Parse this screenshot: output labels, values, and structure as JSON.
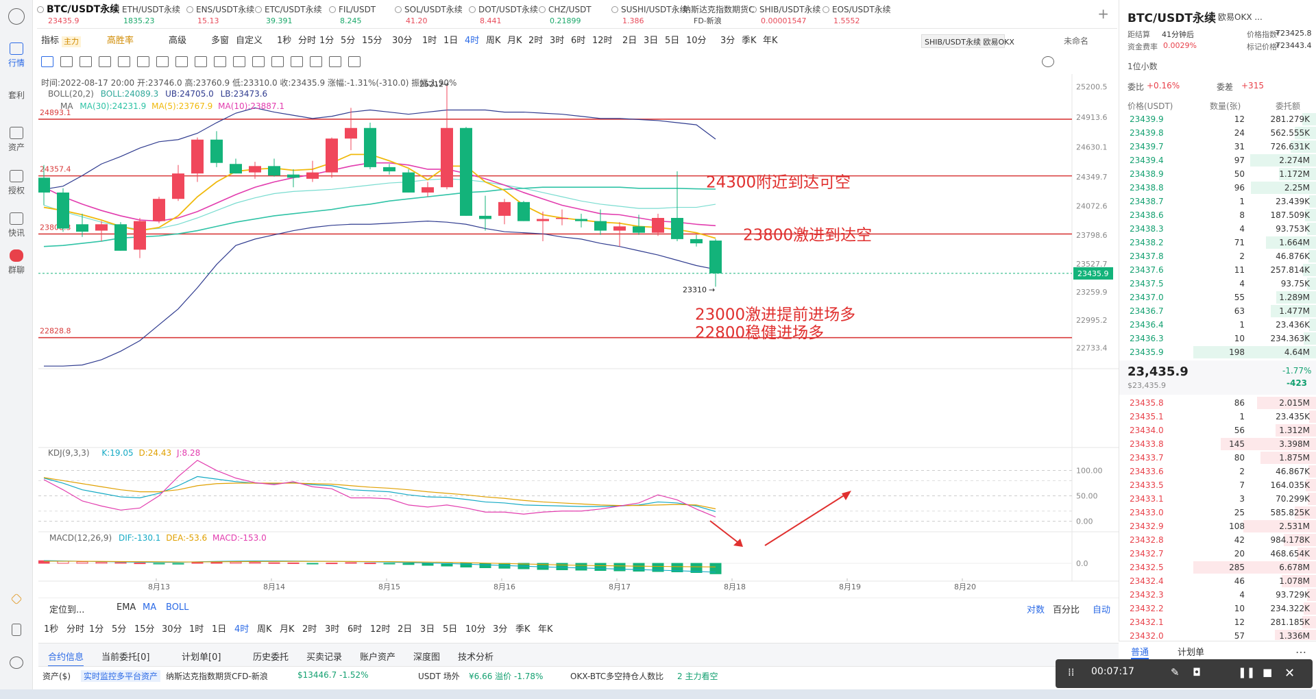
{
  "tabs": [
    {
      "name": "BTC/USDT永续",
      "price": "23435.9",
      "dir": "down"
    },
    {
      "name": "ETH/USDT永续",
      "price": "1835.23",
      "dir": "up"
    },
    {
      "name": "ENS/USDT永续",
      "price": "15.13",
      "dir": "down"
    },
    {
      "name": "ETC/USDT永续",
      "price": "39.391",
      "dir": "up"
    },
    {
      "name": "FIL/USDT",
      "price": "8.245",
      "dir": "up"
    },
    {
      "name": "SOL/USDT永续",
      "price": "41.20",
      "dir": "down"
    },
    {
      "name": "DOT/USDT永续",
      "price": "8.441",
      "dir": "down"
    },
    {
      "name": "CHZ/USDT",
      "price": "0.21899",
      "dir": "up"
    },
    {
      "name": "SUSHI/USDT永续",
      "price": "1.386",
      "dir": "down"
    },
    {
      "name": "纳斯达克指数期货C",
      "price": "FD-新浪",
      "dir": "plain"
    },
    {
      "name": "SHIB/USDT永续",
      "price": "0.00001547",
      "dir": "down"
    },
    {
      "name": "EOS/USDT永续",
      "price": "1.5552",
      "dir": "down"
    }
  ],
  "tab_add": "+",
  "tooltip_hover": "SHIB/USDT永续 欧易OKX",
  "toolbar1": {
    "indicator": "指标",
    "main_badge": "主力",
    "high_win": "高胜率",
    "advanced": "高级",
    "multi": "多窗",
    "custom": "自定义",
    "intervals": [
      "1秒",
      "分时",
      "1分",
      "5分",
      "15分",
      "30分",
      "1时",
      "1日",
      "4时",
      "周K",
      "月K",
      "2时",
      "3时",
      "6时",
      "12时",
      "2日",
      "3日",
      "5日",
      "10分",
      "3分",
      "季K",
      "年K"
    ],
    "active_interval": "4时",
    "unnamed": "未命名"
  },
  "ohlc_line": "时间:2022-08-17 20:00  开:23746.0  高:23760.9  低:23310.0  收:23435.9  涨幅:-1.31%(-310.0)  振幅:1.90%",
  "boll_line": {
    "label": "BOLL(20,2)",
    "boll": "BOLL:24089.3",
    "ub": "UB:24705.0",
    "lb": "LB:23473.6"
  },
  "ma_line": {
    "label": "MA",
    "ma30": "MA(30):24231.9",
    "ma5": "MA(5):23767.9",
    "ma10": "MA(10):23887.1"
  },
  "kdj_line": {
    "label": "KDJ(9,3,3)",
    "k": "K:19.05",
    "d": "D:24.43",
    "j": "J:8.28"
  },
  "macd_line": {
    "label": "MACD(12,26,9)",
    "dif": "DIF:-130.1",
    "dea": "DEA:-53.6",
    "macd": "MACD:-153.0"
  },
  "price_axis": [
    "25200.5",
    "24913.6",
    "24630.1",
    "24349.7",
    "24072.6",
    "23798.6",
    "23527.7",
    "23259.9",
    "22995.2",
    "22733.4"
  ],
  "current_price_tag": "23435.9",
  "kdj_axis": [
    "100.00",
    "50.00",
    "0.00"
  ],
  "macd_axis": [
    "0.0"
  ],
  "date_axis": [
    "8月13",
    "8月14",
    "8月15",
    "8月16",
    "8月17",
    "8月18",
    "8月19",
    "8月20"
  ],
  "hlines": [
    "24893.1",
    "24357.4",
    "23808.3",
    "22828.8"
  ],
  "high_mark": "25212",
  "low_mark": "23310",
  "annotations": [
    "24300附近到达可空",
    "23800激进到达空",
    "23000激进提前进场多",
    "22800稳健进场多"
  ],
  "chart_data": {
    "type": "candlestick",
    "interval": "4时",
    "candles": [
      [
        24340,
        24460,
        24080,
        24200
      ],
      [
        24200,
        24240,
        23830,
        23860
      ],
      [
        23900,
        24000,
        23780,
        23830
      ],
      [
        23840,
        23930,
        23740,
        23900
      ],
      [
        23900,
        23920,
        23650,
        23650
      ],
      [
        23660,
        23960,
        23580,
        23930
      ],
      [
        23930,
        24160,
        23910,
        24140
      ],
      [
        24140,
        24460,
        24120,
        24380
      ],
      [
        24380,
        24720,
        24300,
        24700
      ],
      [
        24700,
        24780,
        24440,
        24480
      ],
      [
        24470,
        24520,
        24380,
        24380
      ],
      [
        24390,
        24490,
        24330,
        24450
      ],
      [
        24450,
        24520,
        24350,
        24360
      ],
      [
        24370,
        24420,
        24250,
        24340
      ],
      [
        24330,
        24500,
        24300,
        24390
      ],
      [
        24390,
        24720,
        24340,
        24710
      ],
      [
        24710,
        25000,
        24600,
        24810
      ],
      [
        24810,
        24860,
        24420,
        24440
      ],
      [
        24440,
        24470,
        24370,
        24400
      ],
      [
        24390,
        24420,
        24200,
        24200
      ],
      [
        24200,
        24300,
        24160,
        24250
      ],
      [
        24250,
        25212,
        24230,
        24810
      ],
      [
        24810,
        24820,
        23980,
        23980
      ],
      [
        23980,
        24170,
        23840,
        23950
      ],
      [
        23980,
        24140,
        23900,
        24110
      ],
      [
        24110,
        24120,
        23930,
        23930
      ],
      [
        23930,
        24020,
        23740,
        23950
      ],
      [
        23950,
        24040,
        23890,
        23960
      ],
      [
        23950,
        24000,
        23870,
        23930
      ],
      [
        23930,
        24040,
        23800,
        23840
      ],
      [
        23840,
        23920,
        23690,
        23880
      ],
      [
        23880,
        23990,
        23800,
        23820
      ],
      [
        23820,
        24000,
        23790,
        23960
      ],
      [
        23960,
        24400,
        23740,
        23760
      ],
      [
        23760,
        23800,
        23690,
        23720
      ],
      [
        23746,
        23760.9,
        23310,
        23435.9
      ]
    ],
    "ma5": [
      24060,
      24030,
      23990,
      23940,
      23880,
      23840,
      23870,
      23980,
      24160,
      24300,
      24400,
      24420,
      24430,
      24410,
      24420,
      24480,
      24560,
      24560,
      24500,
      24430,
      24320,
      24450,
      24450,
      24300,
      24220,
      24080,
      23990,
      23960,
      23940,
      23920,
      23910,
      23880,
      23870,
      23850,
      23820,
      23768
    ],
    "ma10": [
      24250,
      24160,
      24090,
      24030,
      23980,
      23940,
      23930,
      23960,
      24020,
      24100,
      24180,
      24250,
      24300,
      24340,
      24370,
      24410,
      24450,
      24480,
      24480,
      24460,
      24420,
      24420,
      24380,
      24330,
      24270,
      24200,
      24140,
      24080,
      24040,
      24000,
      23990,
      23960,
      23930,
      23920,
      23900,
      23887
    ],
    "ma30": [
      23690,
      23700,
      23720,
      23740,
      23770,
      23780,
      23790,
      23810,
      23840,
      23880,
      23920,
      23950,
      23980,
      24000,
      24020,
      24040,
      24070,
      24090,
      24120,
      24140,
      24160,
      24180,
      24200,
      24210,
      24230,
      24240,
      24250,
      24250,
      24250,
      24250,
      24250,
      24240,
      24240,
      24240,
      24235,
      24232
    ],
    "boll_ub": [
      24230,
      24260,
      24360,
      24470,
      24540,
      24620,
      24680,
      24700,
      24760,
      24860,
      24950,
      25000,
      24960,
      24930,
      24900,
      24920,
      24960,
      24980,
      24960,
      24940,
      24960,
      24980,
      24980,
      24980,
      24960,
      24960,
      24950,
      24940,
      24920,
      24900,
      24900,
      24890,
      24880,
      24860,
      24840,
      24705
    ],
    "boll_mid": [
      24080,
      24020,
      23970,
      23920,
      23880,
      23850,
      23860,
      23900,
      23960,
      24030,
      24100,
      24150,
      24190,
      24210,
      24220,
      24230,
      24250,
      24270,
      24290,
      24300,
      24320,
      24330,
      24320,
      24300,
      24270,
      24240,
      24200,
      24160,
      24120,
      24090,
      24070,
      24050,
      24050,
      24060,
      24060,
      24089
    ],
    "boll_lb": [
      22560,
      22560,
      22570,
      22620,
      22700,
      22800,
      22950,
      23100,
      23300,
      23520,
      23700,
      23760,
      23800,
      23840,
      23870,
      23890,
      23900,
      23900,
      23910,
      23920,
      23930,
      23920,
      23900,
      23860,
      23830,
      23820,
      23810,
      23780,
      23760,
      23720,
      23690,
      23650,
      23610,
      23560,
      23510,
      23474
    ],
    "kdj_k": [
      85,
      75,
      62,
      55,
      48,
      46,
      55,
      70,
      88,
      83,
      78,
      75,
      74,
      76,
      72,
      70,
      62,
      60,
      58,
      52,
      48,
      47,
      43,
      38,
      36,
      32,
      31,
      30,
      29,
      29,
      30,
      32,
      38,
      36,
      30,
      19.05
    ],
    "kdj_d": [
      86,
      80,
      74,
      68,
      62,
      58,
      58,
      62,
      70,
      74,
      75,
      75,
      75,
      75,
      74,
      73,
      70,
      67,
      65,
      62,
      58,
      55,
      52,
      48,
      45,
      41,
      38,
      36,
      34,
      32,
      31,
      31,
      32,
      33,
      32,
      24.43
    ],
    "kdj_j": [
      82,
      62,
      40,
      30,
      22,
      26,
      50,
      88,
      120,
      100,
      85,
      76,
      72,
      78,
      68,
      64,
      46,
      46,
      44,
      32,
      28,
      32,
      26,
      18,
      18,
      14,
      18,
      20,
      20,
      24,
      30,
      36,
      52,
      42,
      24,
      8.28
    ],
    "macd_hist": [
      38,
      30,
      22,
      16,
      12,
      4,
      -8,
      -12,
      14,
      20,
      18,
      14,
      8,
      6,
      -2,
      4,
      10,
      4,
      -6,
      -18,
      -30,
      -40,
      -55,
      -65,
      -72,
      -80,
      -90,
      -95,
      -100,
      -105,
      -110,
      -115,
      -120,
      -125,
      -135,
      -153
    ],
    "macd_dif": [
      40,
      35,
      30,
      25,
      20,
      17,
      15,
      16,
      22,
      28,
      32,
      34,
      34,
      33,
      31,
      29,
      26,
      22,
      18,
      12,
      5,
      -2,
      -12,
      -22,
      -32,
      -42,
      -52,
      -60,
      -68,
      -76,
      -84,
      -92,
      -100,
      -108,
      -118,
      -130.1
    ],
    "macd_dea": [
      30,
      30,
      30,
      28,
      26,
      24,
      22,
      20,
      20,
      22,
      24,
      26,
      27,
      28,
      28,
      28,
      27,
      26,
      24,
      21,
      18,
      14,
      9,
      3,
      -3,
      -10,
      -17,
      -24,
      -30,
      -34,
      -38,
      -42,
      -45,
      -48,
      -51,
      -53.6
    ],
    "price_range": [
      22600,
      25320
    ],
    "date_labels": [
      "8月13",
      "8月14",
      "8月15",
      "8月16",
      "8月17",
      "8月18",
      "8月19",
      "8月20"
    ]
  },
  "colors": {
    "up": "#f0475b",
    "down": "#13b37a",
    "ma5": "#f0b90b",
    "ma10": "#e23cae",
    "ma30": "#2fc3a6",
    "boll_band": "#2f3b8f",
    "boll_mid": "#79dcd0",
    "hline": "#d83a3a",
    "annotation": "#e0302f",
    "blue": "#2b6ae6"
  },
  "bottom_tools": {
    "locate": "定位到...",
    "ema": "EMA",
    "ma": "MA",
    "boll": "BOLL",
    "log": "对数",
    "pct": "百分比",
    "auto": "自动",
    "intervals": [
      "1秒",
      "分时",
      "1分",
      "5分",
      "15分",
      "30分",
      "1时",
      "1日",
      "4时",
      "周K",
      "月K",
      "2时",
      "3时",
      "6时",
      "12时",
      "2日",
      "3日",
      "5日",
      "10分",
      "3分",
      "季K",
      "年K"
    ]
  },
  "bottom_tabs": [
    "合约信息",
    "当前委托[0]",
    "计划单[0]",
    "历史委托",
    "买卖记录",
    "账户资产",
    "深度图",
    "技术分析"
  ],
  "status": {
    "assets": "资产($)",
    "monitor": "实时监控多平台资产",
    "nasdaq": "纳斯达克指数期货CFD-新浪",
    "nasdaq_val": "$13446.7 -1.52%",
    "usdt": "USDT 场外",
    "usdt_val": "¥6.66 溢价 -1.78%",
    "okx": "OKX-BTC多空持仓人数比",
    "okx_val": "2 主力看空"
  },
  "leftnav": [
    "行情",
    "套利",
    "资产",
    "授权",
    "快讯",
    "群聊"
  ],
  "right": {
    "symbol": "BTC/USDT永续",
    "exchange": "欧易OKX ...",
    "funding_label": "距结算",
    "funding_val": "41分钟后",
    "price_index_label": "价格指数",
    "price_index": "₮23425.8",
    "rate_label": "资金费率",
    "rate": "0.0029%",
    "mark_label": "标记价格",
    "mark": "₮23443.4",
    "depth": "1位小数",
    "ratio_label": "委比",
    "ratio": "+0.16%",
    "diff_label": "委差",
    "diff": "+315",
    "hdr": [
      "价格(USDT)",
      "数量(张)",
      "委托额"
    ],
    "asks": [
      [
        "23439.9",
        "12",
        "281.279K"
      ],
      [
        "23439.8",
        "24",
        "562.555K"
      ],
      [
        "23439.7",
        "31",
        "726.631K"
      ],
      [
        "23439.4",
        "97",
        "2.274M"
      ],
      [
        "23438.9",
        "50",
        "1.172M"
      ],
      [
        "23438.8",
        "96",
        "2.25M"
      ],
      [
        "23438.7",
        "1",
        "23.439K"
      ],
      [
        "23438.6",
        "8",
        "187.509K"
      ],
      [
        "23438.3",
        "4",
        "93.753K"
      ],
      [
        "23438.2",
        "71",
        "1.664M"
      ],
      [
        "23437.8",
        "2",
        "46.876K"
      ],
      [
        "23437.6",
        "11",
        "257.814K"
      ],
      [
        "23437.5",
        "4",
        "93.75K"
      ],
      [
        "23437.0",
        "55",
        "1.289M"
      ],
      [
        "23436.7",
        "63",
        "1.477M"
      ],
      [
        "23436.4",
        "1",
        "23.436K"
      ],
      [
        "23436.3",
        "10",
        "234.363K"
      ],
      [
        "23435.9",
        "198",
        "4.64M"
      ]
    ],
    "last": "23,435.9",
    "last_usd": "$23,435.9",
    "change": "-1.77%",
    "change_abs": "-423",
    "bids": [
      [
        "23435.8",
        "86",
        "2.015M"
      ],
      [
        "23435.1",
        "1",
        "23.435K"
      ],
      [
        "23434.0",
        "56",
        "1.312M"
      ],
      [
        "23433.8",
        "145",
        "3.398M"
      ],
      [
        "23433.7",
        "80",
        "1.875M"
      ],
      [
        "23433.6",
        "2",
        "46.867K"
      ],
      [
        "23433.5",
        "7",
        "164.035K"
      ],
      [
        "23433.1",
        "3",
        "70.299K"
      ],
      [
        "23433.0",
        "25",
        "585.825K"
      ],
      [
        "23432.9",
        "108",
        "2.531M"
      ],
      [
        "23432.8",
        "42",
        "984.178K"
      ],
      [
        "23432.7",
        "20",
        "468.654K"
      ],
      [
        "23432.5",
        "285",
        "6.678M"
      ],
      [
        "23432.4",
        "46",
        "1.078M"
      ],
      [
        "23432.3",
        "4",
        "93.729K"
      ],
      [
        "23432.2",
        "10",
        "234.322K"
      ],
      [
        "23432.1",
        "12",
        "281.185K"
      ],
      [
        "23432.0",
        "57",
        "1.336M"
      ]
    ],
    "bottom_tabs": [
      "普通",
      "计划单"
    ]
  },
  "recorder": {
    "time": "00:07:17"
  }
}
